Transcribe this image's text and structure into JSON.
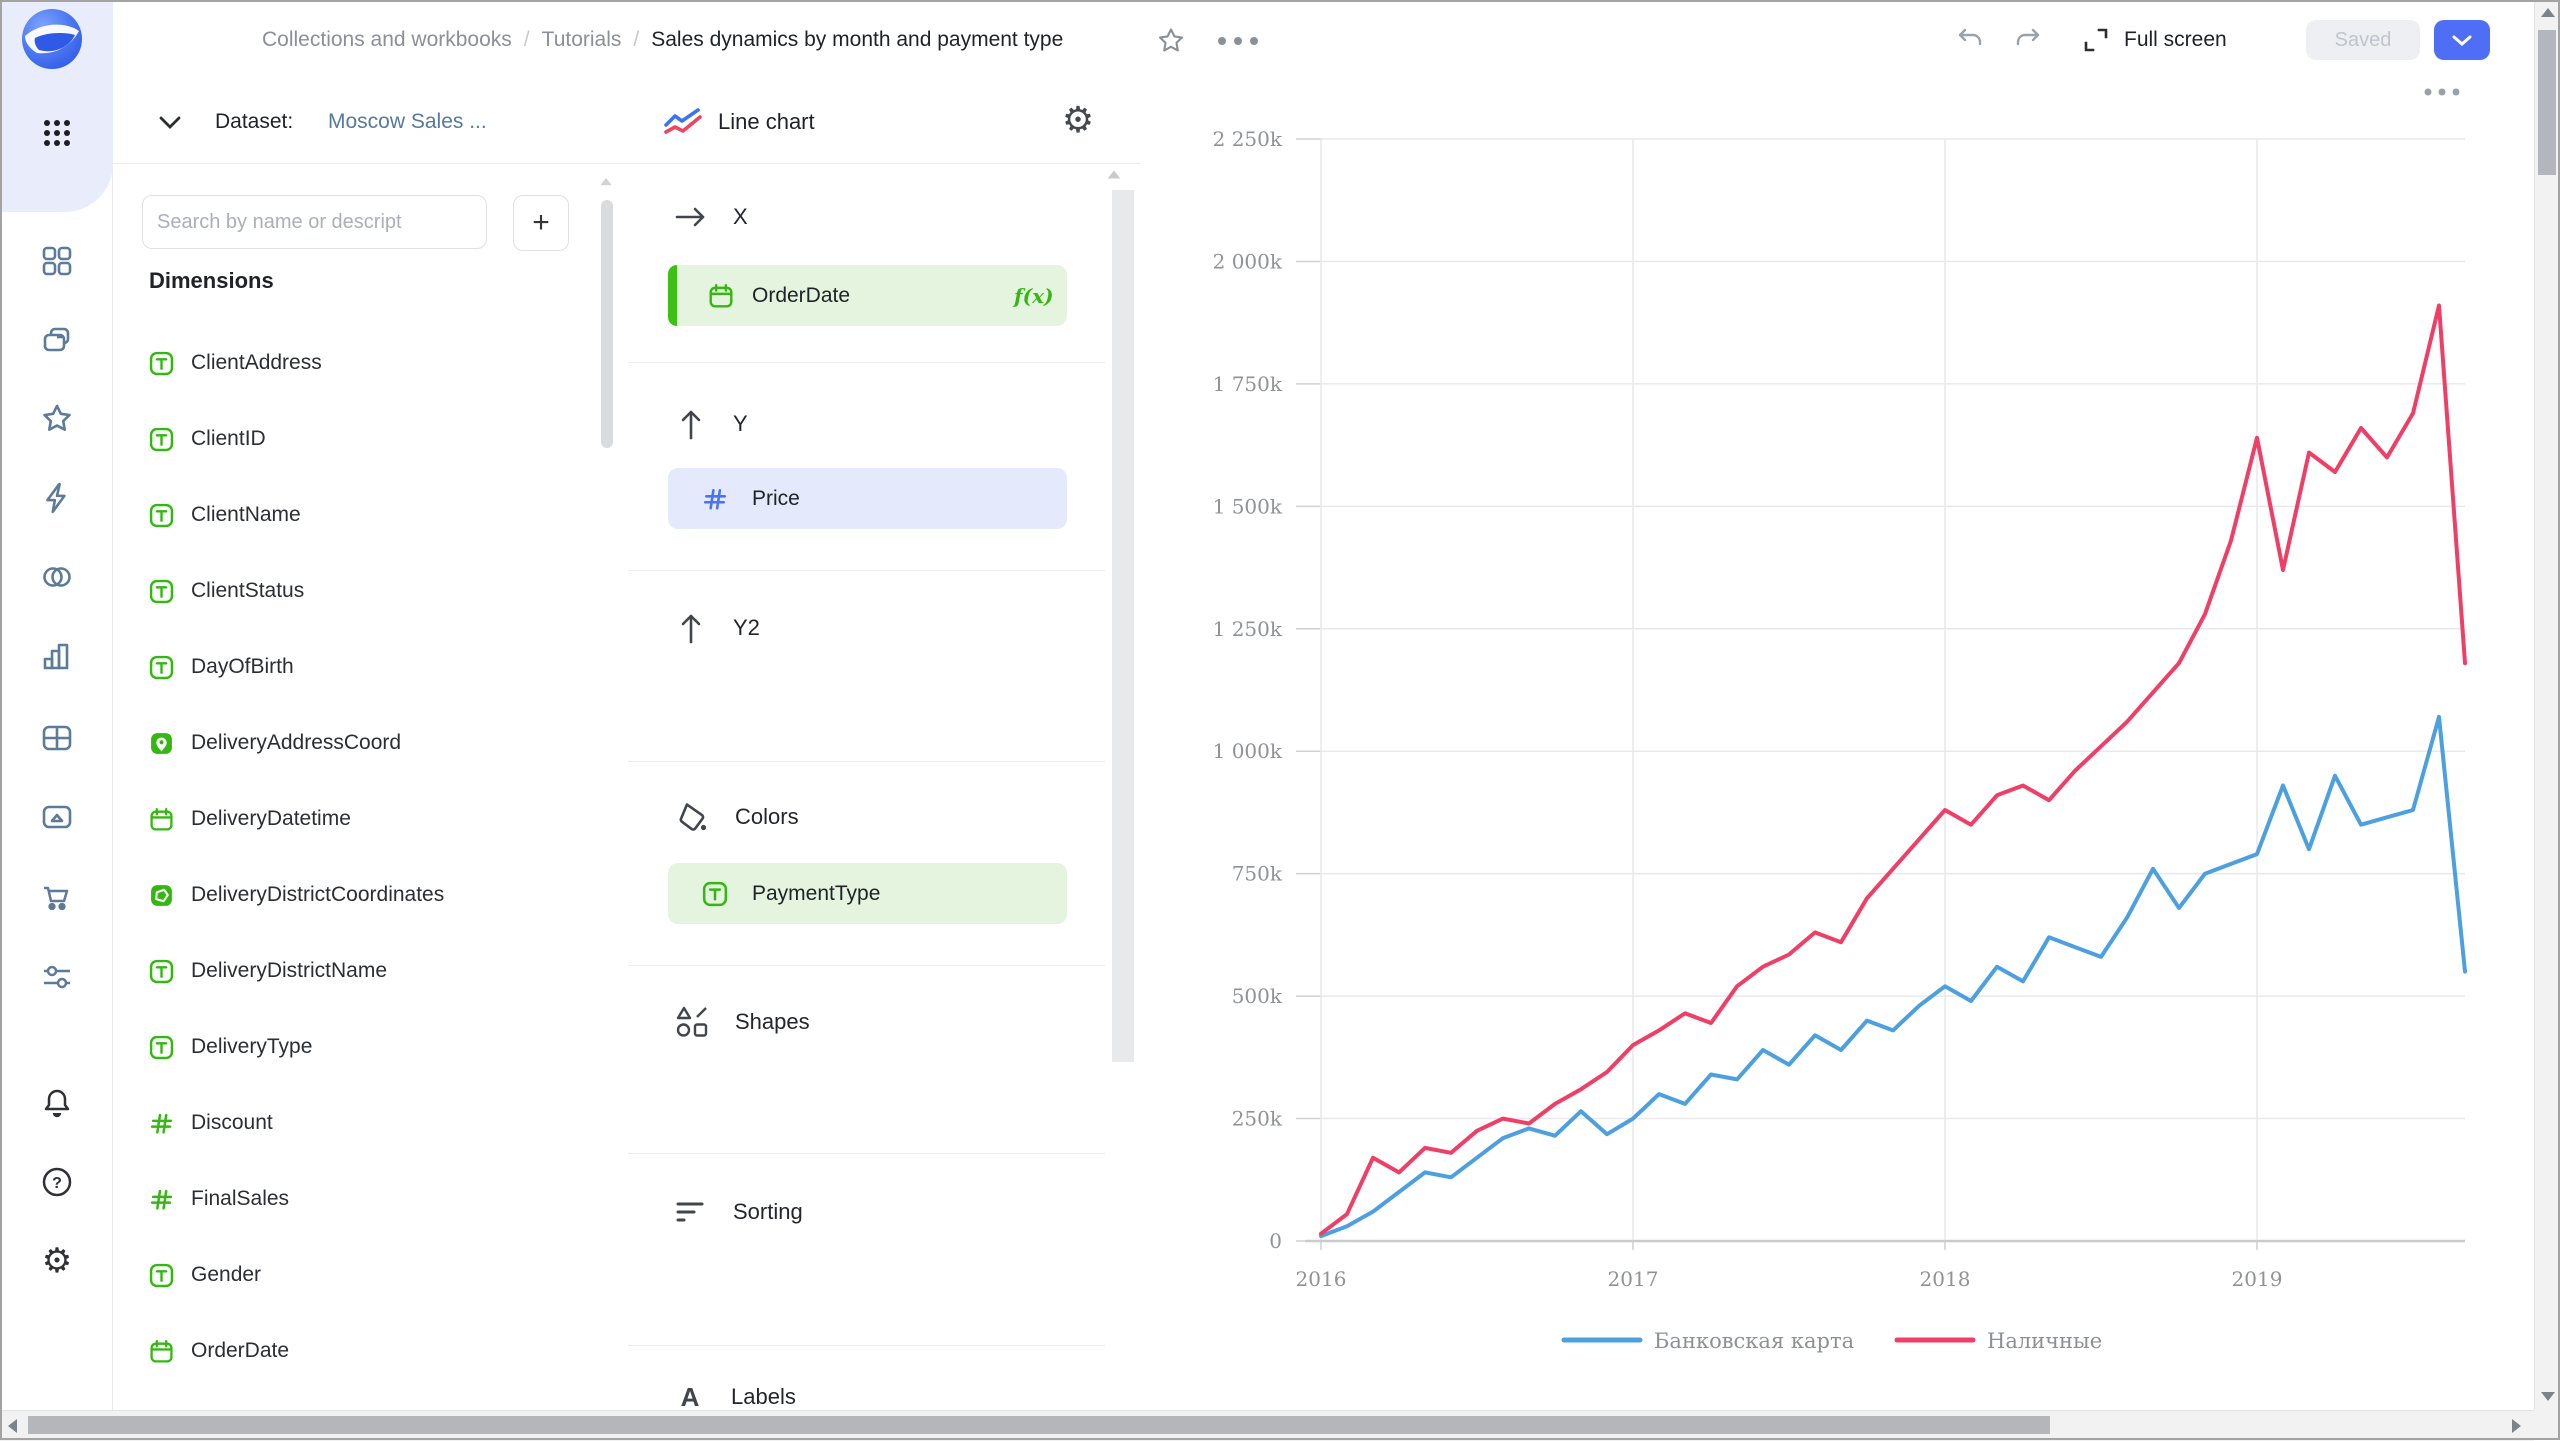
{
  "header": {
    "breadcrumbs": [
      "Collections and workbooks",
      "Tutorials",
      "Sales dynamics by month and payment type"
    ],
    "separator": "/",
    "actions": {
      "full_screen": "Full screen",
      "saved": "Saved"
    },
    "icons": [
      "star-icon",
      "more-options-icon",
      "undo-icon",
      "redo-icon",
      "expand-icon",
      "dropdown-chevron-icon"
    ]
  },
  "rail": {
    "icons": [
      "datalens-logo",
      "apps-grid-icon",
      "widgets-icon",
      "collections-icon",
      "favorites-star-icon",
      "connections-bolt-icon",
      "datasets-icon",
      "charts-icon",
      "dashboards-icon",
      "gallery-icon",
      "marketplace-cart-icon",
      "services-sliders-icon",
      "notifications-bell-icon",
      "help-icon",
      "settings-gear-icon"
    ]
  },
  "dataset_panel": {
    "label": "Dataset:",
    "dataset_name": "Moscow Sales ...",
    "search_placeholder": "Search by name or descript",
    "add_button_label": "+",
    "section_title": "Dimensions",
    "fields": [
      {
        "name": "ClientAddress",
        "type": "text"
      },
      {
        "name": "ClientID",
        "type": "text"
      },
      {
        "name": "ClientName",
        "type": "text"
      },
      {
        "name": "ClientStatus",
        "type": "text"
      },
      {
        "name": "DayOfBirth",
        "type": "text"
      },
      {
        "name": "DeliveryAddressCoord",
        "type": "geopoint"
      },
      {
        "name": "DeliveryDatetime",
        "type": "date"
      },
      {
        "name": "DeliveryDistrictCoordinates",
        "type": "geopolygon"
      },
      {
        "name": "DeliveryDistrictName",
        "type": "text"
      },
      {
        "name": "DeliveryType",
        "type": "text"
      },
      {
        "name": "Discount",
        "type": "number"
      },
      {
        "name": "FinalSales",
        "type": "number"
      },
      {
        "name": "Gender",
        "type": "text"
      },
      {
        "name": "OrderDate",
        "type": "date"
      }
    ]
  },
  "config_panel": {
    "chart_type_label": "Line chart",
    "sections": {
      "x": {
        "label": "X",
        "field": {
          "name": "OrderDate",
          "type": "date",
          "formula_badge": "f(x)"
        }
      },
      "y": {
        "label": "Y",
        "field": {
          "name": "Price",
          "type": "number"
        }
      },
      "y2": {
        "label": "Y2"
      },
      "colors": {
        "label": "Colors",
        "field": {
          "name": "PaymentType",
          "type": "text"
        }
      },
      "shapes": {
        "label": "Shapes"
      },
      "sorting": {
        "label": "Sorting"
      },
      "labels": {
        "label": "Labels"
      }
    }
  },
  "chart_data": {
    "type": "line",
    "title": "",
    "xlabel": "",
    "ylabel": "",
    "ylim": [
      0,
      2250000
    ],
    "grid": true,
    "legend_position": "bottom",
    "x": [
      "2016-01",
      "2016-02",
      "2016-03",
      "2016-04",
      "2016-05",
      "2016-06",
      "2016-07",
      "2016-08",
      "2016-09",
      "2016-10",
      "2016-11",
      "2016-12",
      "2017-01",
      "2017-02",
      "2017-03",
      "2017-04",
      "2017-05",
      "2017-06",
      "2017-07",
      "2017-08",
      "2017-09",
      "2017-10",
      "2017-11",
      "2017-12",
      "2018-01",
      "2018-02",
      "2018-03",
      "2018-04",
      "2018-05",
      "2018-06",
      "2018-07",
      "2018-08",
      "2018-09",
      "2018-10",
      "2018-11",
      "2018-12",
      "2019-01",
      "2019-02",
      "2019-03",
      "2019-04",
      "2019-05",
      "2019-06",
      "2019-07",
      "2019-08",
      "2019-09"
    ],
    "x_ticks": [
      {
        "label": "2016",
        "month_index": 0
      },
      {
        "label": "2017",
        "month_index": 12
      },
      {
        "label": "2018",
        "month_index": 24
      },
      {
        "label": "2019",
        "month_index": 36
      }
    ],
    "y_ticks": [
      {
        "label": "0",
        "value": 0
      },
      {
        "label": "250k",
        "value": 250000
      },
      {
        "label": "500k",
        "value": 500000
      },
      {
        "label": "750k",
        "value": 750000
      },
      {
        "label": "1 000k",
        "value": 1000000
      },
      {
        "label": "1 250k",
        "value": 1250000
      },
      {
        "label": "1 500k",
        "value": 1500000
      },
      {
        "label": "1 750k",
        "value": 1750000
      },
      {
        "label": "2 000k",
        "value": 2000000
      },
      {
        "label": "2 250k",
        "value": 2250000
      }
    ],
    "series": [
      {
        "name": "Банковская карта",
        "color": "#4CA0E0",
        "values": [
          10000,
          30000,
          60000,
          100000,
          140000,
          130000,
          170000,
          210000,
          230000,
          215000,
          265000,
          218000,
          250000,
          300000,
          280000,
          340000,
          330000,
          390000,
          360000,
          420000,
          390000,
          450000,
          430000,
          480000,
          520000,
          490000,
          560000,
          530000,
          620000,
          600000,
          580000,
          660000,
          760000,
          680000,
          750000,
          770000,
          790000,
          930000,
          800000,
          950000,
          850000,
          865000,
          880000,
          1070000,
          550000
        ]
      },
      {
        "name": "Наличные",
        "color": "#EF3F66",
        "values": [
          15000,
          55000,
          170000,
          140000,
          190000,
          180000,
          225000,
          250000,
          240000,
          280000,
          310000,
          345000,
          400000,
          430000,
          465000,
          445000,
          520000,
          560000,
          585000,
          630000,
          610000,
          700000,
          760000,
          820000,
          880000,
          850000,
          910000,
          930000,
          900000,
          960000,
          1010000,
          1060000,
          1120000,
          1180000,
          1280000,
          1430000,
          1640000,
          1370000,
          1610000,
          1570000,
          1660000,
          1600000,
          1690000,
          1910000,
          1180000
        ]
      }
    ]
  },
  "colors": {
    "accent_blue": "#4e6ef5",
    "field_green": "#35b712",
    "pill_green_bg": "#e4f4de",
    "pill_blue_bg": "#e4eafb",
    "series_blue": "#4CA0E0",
    "series_red": "#EF3F66",
    "rail_blob": "#e9edfb"
  }
}
